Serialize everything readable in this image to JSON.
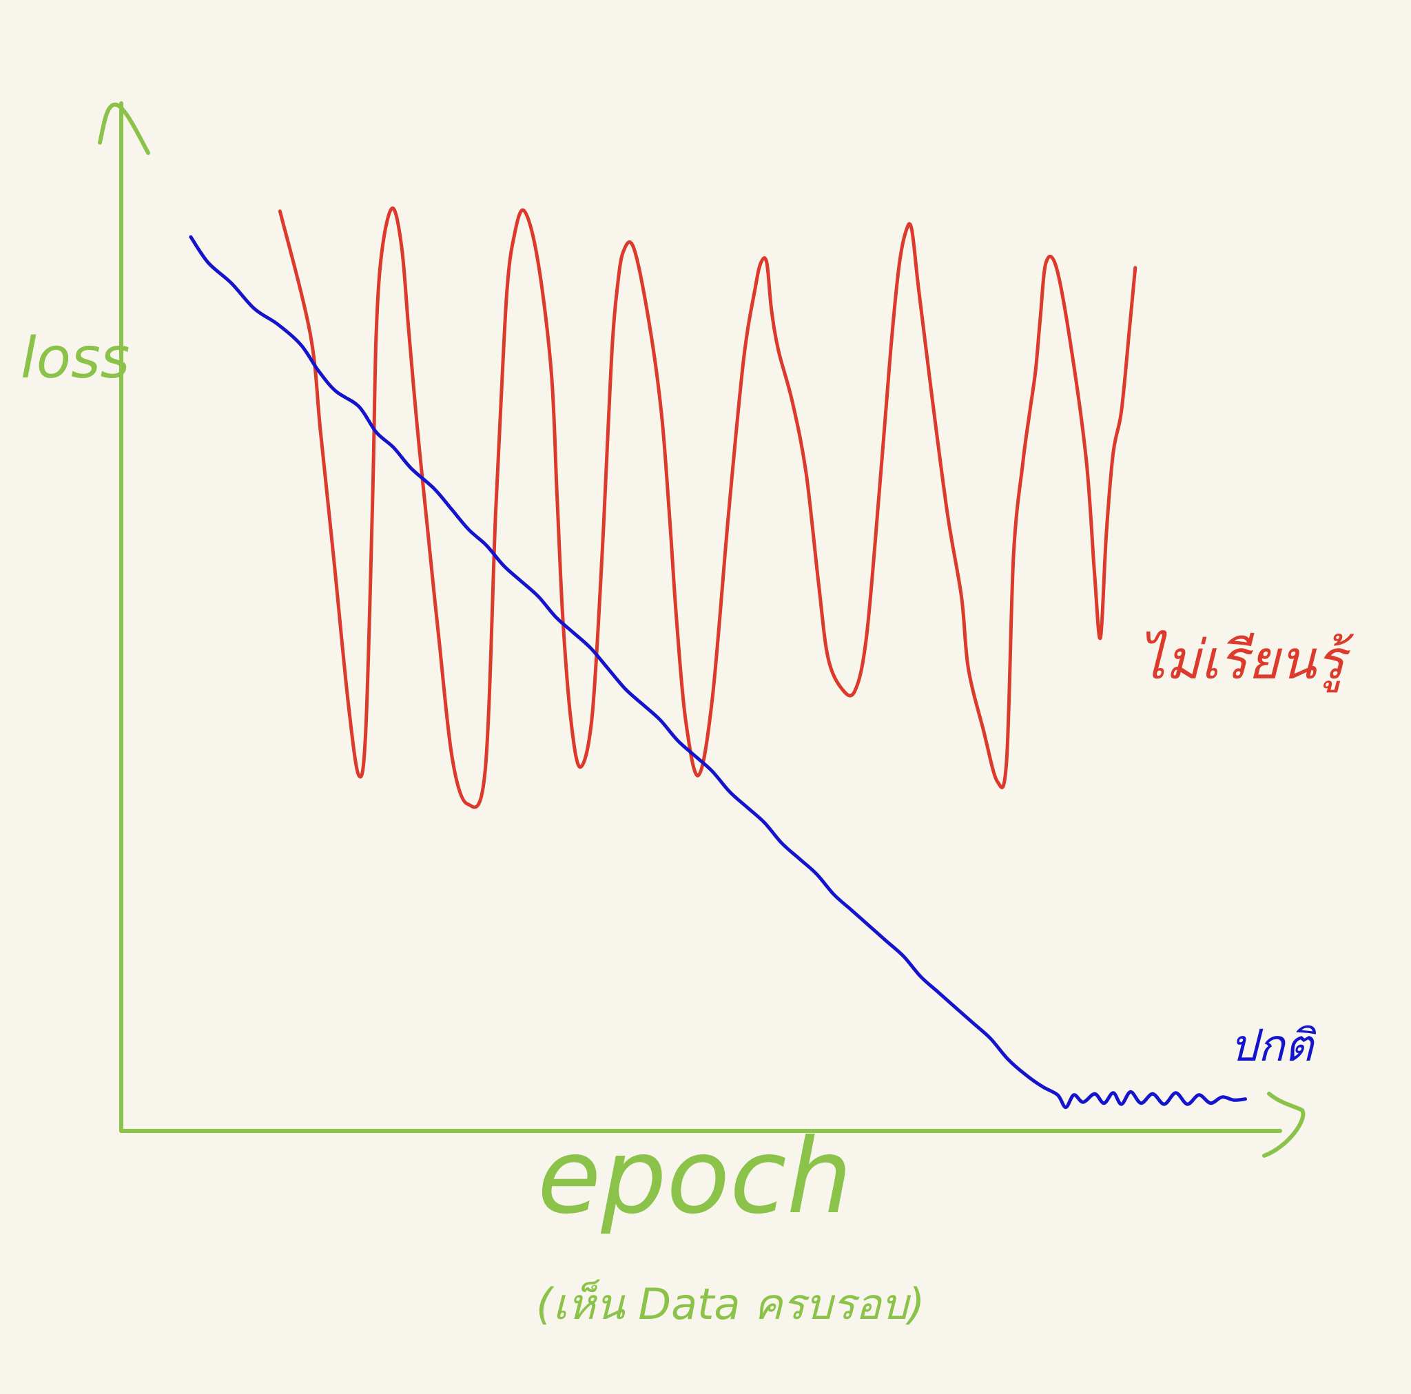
{
  "colors": {
    "background": "#f8f6ec",
    "axis": "#8bc24a",
    "series_red": "#dc3a2c",
    "series_blue": "#1414cc"
  },
  "chart_data": {
    "type": "line",
    "title": "",
    "xlabel": "epoch",
    "xlabel_note": "(เห็น Data ครบรอบ)",
    "ylabel": "loss",
    "xlim": [
      0,
      100
    ],
    "ylim": [
      0,
      100
    ],
    "grid": false,
    "legend": "none",
    "series": [
      {
        "name": "ไม่เรียนรู้",
        "color": "#dc3a2c",
        "x": [
          13.7,
          16.3,
          17.2,
          18.4,
          19.6,
          20.5,
          21.1,
          21.7,
          22.0,
          22.5,
          23.4,
          24.2,
          24.8,
          25.5,
          26.3,
          27.4,
          28.6,
          29.9,
          31.4,
          32.3,
          32.9,
          33.3,
          33.8,
          34.7,
          35.9,
          37.1,
          37.6,
          38.1,
          38.8,
          39.6,
          40.6,
          41.4,
          42.0,
          42.4,
          42.8,
          43.3,
          44.2,
          45.5,
          46.6,
          47.3,
          47.9,
          48.7,
          49.8,
          51.0,
          52.4,
          53.7,
          54.7,
          55.2,
          55.7,
          56.1,
          56.7,
          57.9,
          59.1,
          60.2,
          61.0,
          62.2,
          63.3,
          64.3,
          65.4,
          66.4,
          67.1,
          67.7,
          68.2,
          68.8,
          69.9,
          71.3,
          72.5,
          73.1,
          74.4,
          75.6,
          76.4,
          77.0,
          77.8,
          78.4,
          78.9,
          79.3,
          79.8,
          80.7,
          82.0,
          83.3,
          84.0,
          84.5,
          85.0,
          85.6,
          86.3,
          87.0,
          87.5
        ],
        "y": [
          89.5,
          77.6,
          68.0,
          55.0,
          41.5,
          34.6,
          39.0,
          62.0,
          77.5,
          85.7,
          89.8,
          86.0,
          78.0,
          69.0,
          60.0,
          48.0,
          36.0,
          31.8,
          35.0,
          60.0,
          74.0,
          82.0,
          86.5,
          89.6,
          85.0,
          74.0,
          62.0,
          50.0,
          40.0,
          35.4,
          40.0,
          54.0,
          68.0,
          77.0,
          82.0,
          85.5,
          86.0,
          79.0,
          70.0,
          60.0,
          50.0,
          40.0,
          34.6,
          42.0,
          60.0,
          75.0,
          82.0,
          84.5,
          84.5,
          80.0,
          76.0,
          71.0,
          64.0,
          53.0,
          46.0,
          43.0,
          42.8,
          48.0,
          62.0,
          76.0,
          84.0,
          87.5,
          87.8,
          82.0,
          72.0,
          60.0,
          52.0,
          45.0,
          39.0,
          34.0,
          36.0,
          56.0,
          65.0,
          70.0,
          74.0,
          79.0,
          84.5,
          84.0,
          76.0,
          65.0,
          54.0,
          48.0,
          58.0,
          66.0,
          70.0,
          78.0,
          84.0
        ]
      },
      {
        "name": "ปกติ",
        "color": "#1414cc",
        "x": [
          6.0,
          7.5,
          9.5,
          11.5,
          13.5,
          15.5,
          17.0,
          18.5,
          20.5,
          22.0,
          23.5,
          25.0,
          27.0,
          28.5,
          30.0,
          31.5,
          33.0,
          34.5,
          36.0,
          37.5,
          39.0,
          40.5,
          42.0,
          43.5,
          45.0,
          46.5,
          48.0,
          49.5,
          51.0,
          52.5,
          54.0,
          55.5,
          57.0,
          58.5,
          60.0,
          61.5,
          63.0,
          64.5,
          66.0,
          67.5,
          69.0,
          70.5,
          72.0,
          73.5,
          75.0,
          76.5,
          78.0,
          79.5,
          80.8,
          81.5,
          82.2,
          83.0,
          84.0,
          84.8,
          85.6,
          86.3,
          87.1,
          88.0,
          89.0,
          90.0,
          91.0,
          92.0,
          93.0,
          94.0,
          95.0,
          96.0,
          97.0
        ],
        "y": [
          87.0,
          84.5,
          82.5,
          80.0,
          78.5,
          76.5,
          74.0,
          72.0,
          70.5,
          68.0,
          66.5,
          64.5,
          62.5,
          60.5,
          58.5,
          57.0,
          55.0,
          53.5,
          52.0,
          50.0,
          48.5,
          47.0,
          45.0,
          43.0,
          41.5,
          40.0,
          38.0,
          36.5,
          35.0,
          33.0,
          31.5,
          30.0,
          28.0,
          26.5,
          25.0,
          23.0,
          21.5,
          20.0,
          18.5,
          17.0,
          15.0,
          13.5,
          12.0,
          10.5,
          9.0,
          7.0,
          5.5,
          4.3,
          3.5,
          2.3,
          3.5,
          2.8,
          3.6,
          2.7,
          3.7,
          2.6,
          3.8,
          2.7,
          3.6,
          2.6,
          3.7,
          2.6,
          3.5,
          2.7,
          3.3,
          3.0,
          3.1
        ]
      }
    ]
  }
}
